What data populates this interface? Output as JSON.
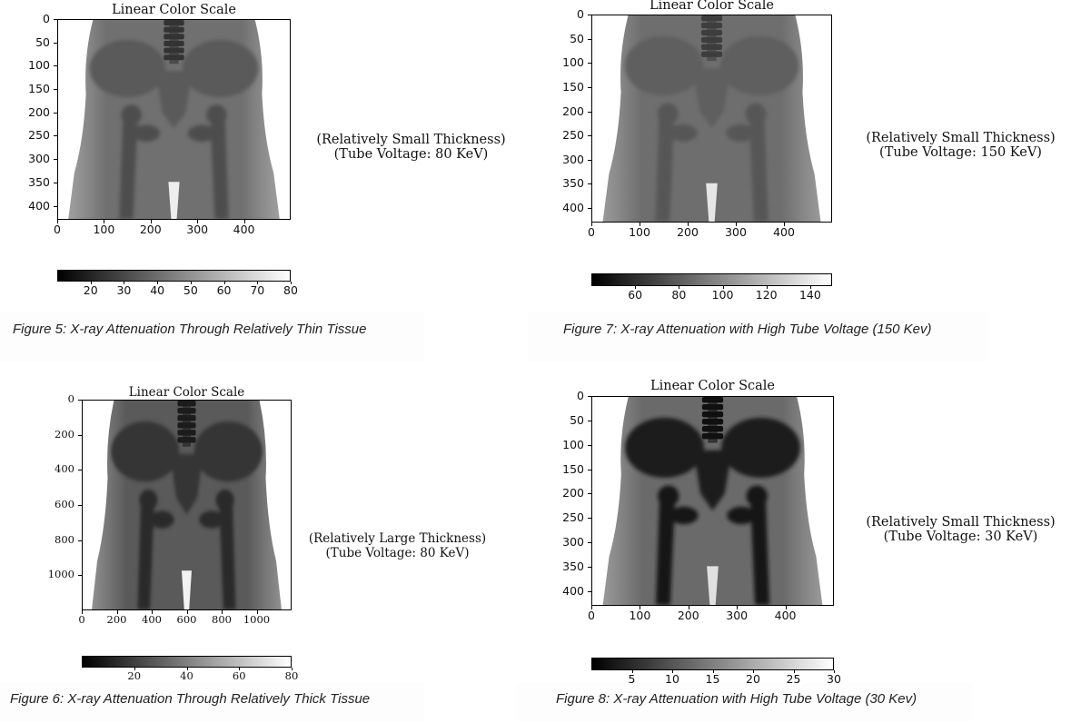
{
  "panels": [
    {
      "id": "fig5",
      "title": "Linear Color Scale",
      "note_line1": "(Relatively Small Thickness)",
      "note_line2": "(Tube Voltage: 80 KeV)",
      "caption": "Figure 5: X-ray Attenuation Through Relatively Thin Tissue",
      "y_ticks": [
        "0",
        "50",
        "100",
        "150",
        "200",
        "250",
        "300",
        "350",
        "400"
      ],
      "x_ticks": [
        "0",
        "100",
        "200",
        "300",
        "400"
      ],
      "colorbar_ticks": [
        "20",
        "30",
        "40",
        "50",
        "60",
        "70",
        "80"
      ],
      "colorbar_range": [
        10,
        80
      ],
      "image_extent": {
        "x": [
          0,
          500
        ],
        "y": [
          430,
          0
        ]
      },
      "bone_contrast": "low"
    },
    {
      "id": "fig7",
      "title": "Linear Color Scale",
      "note_line1": "(Relatively Small Thickness)",
      "note_line2": "(Tube Voltage: 150 KeV)",
      "caption": "Figure 7: X-ray Attenuation with High Tube Voltage (150 Kev)",
      "y_ticks": [
        "0",
        "50",
        "100",
        "150",
        "200",
        "250",
        "300",
        "350",
        "400"
      ],
      "x_ticks": [
        "0",
        "100",
        "200",
        "300",
        "400"
      ],
      "colorbar_ticks": [
        "60",
        "80",
        "100",
        "120",
        "140"
      ],
      "colorbar_range": [
        40,
        150
      ],
      "image_extent": {
        "x": [
          0,
          500
        ],
        "y": [
          430,
          0
        ]
      },
      "bone_contrast": "very-low"
    },
    {
      "id": "fig6",
      "title": "Linear Color Scale",
      "note_line1": "(Relatively Large Thickness)",
      "note_line2": "(Tube Voltage: 80 KeV)",
      "caption": "Figure 6: X-ray Attenuation Through Relatively Thick Tissue",
      "y_ticks": [
        "0",
        "200",
        "400",
        "600",
        "800",
        "1000"
      ],
      "x_ticks": [
        "0",
        "200",
        "400",
        "600",
        "800",
        "1000"
      ],
      "colorbar_ticks": [
        "20",
        "40",
        "60",
        "80"
      ],
      "colorbar_range": [
        0,
        80
      ],
      "image_extent": {
        "x": [
          0,
          1200
        ],
        "y": [
          1200,
          0
        ]
      },
      "bone_contrast": "medium"
    },
    {
      "id": "fig8",
      "title": "Linear Color Scale",
      "note_line1": "(Relatively Small Thickness)",
      "note_line2": "(Tube Voltage: 30 KeV)",
      "caption": "Figure 8: X-ray Attenuation with High Tube Voltage (30 Kev)",
      "y_ticks": [
        "0",
        "50",
        "100",
        "150",
        "200",
        "250",
        "300",
        "350",
        "400"
      ],
      "x_ticks": [
        "0",
        "100",
        "200",
        "300",
        "400"
      ],
      "colorbar_ticks": [
        "5",
        "10",
        "15",
        "20",
        "25",
        "30"
      ],
      "colorbar_range": [
        0,
        30
      ],
      "image_extent": {
        "x": [
          0,
          500
        ],
        "y": [
          430,
          0
        ]
      },
      "bone_contrast": "high"
    }
  ]
}
